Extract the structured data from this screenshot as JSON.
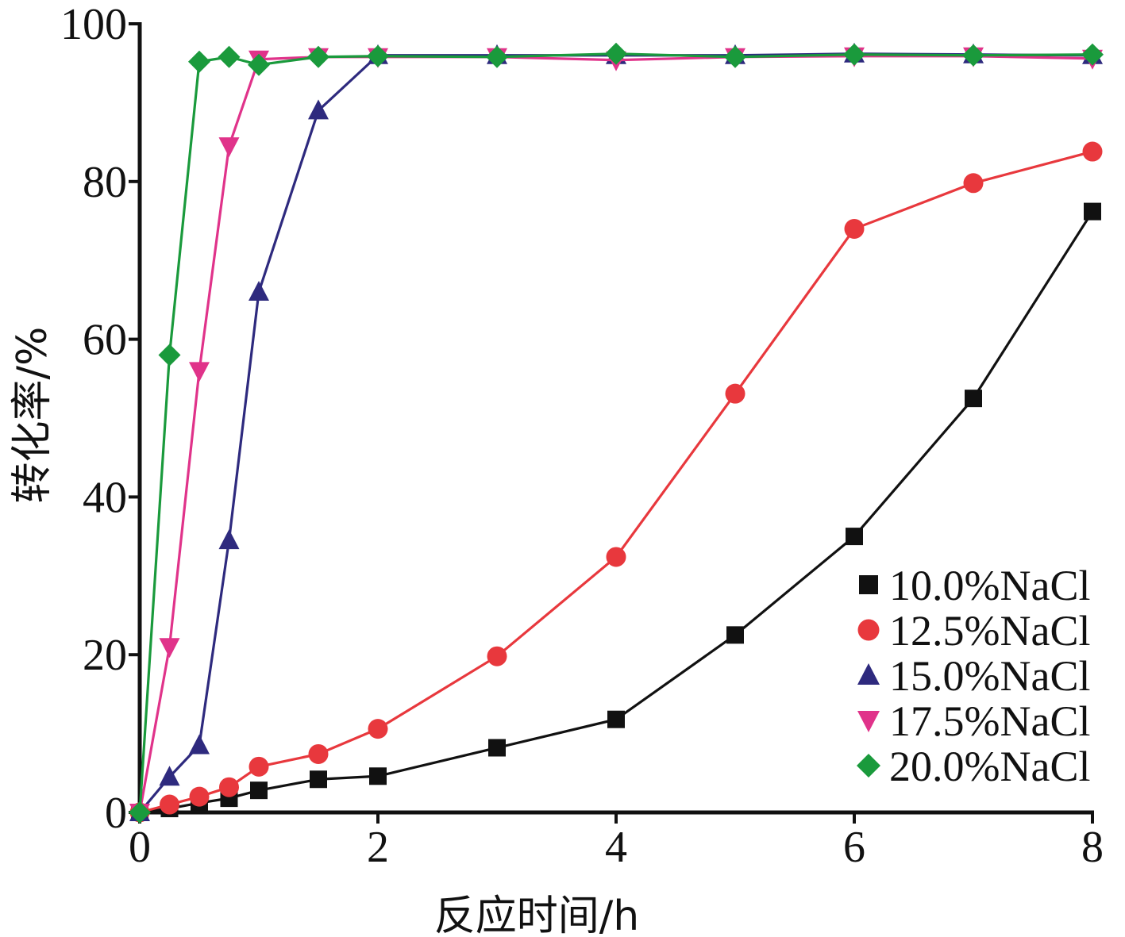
{
  "chart_data": {
    "type": "line",
    "xlabel": "反应时间/h",
    "ylabel": "转化率/%",
    "xlim": [
      0,
      8
    ],
    "ylim": [
      0,
      100
    ],
    "xticks": [
      0,
      2,
      4,
      6,
      8
    ],
    "yticks": [
      0,
      20,
      40,
      60,
      80,
      100
    ],
    "legend_position": "bottom-right",
    "grid": false,
    "series": [
      {
        "name": "10.0%NaCl",
        "color": "#111111",
        "marker": "square",
        "x": [
          0,
          0.25,
          0.5,
          0.75,
          1,
          1.5,
          2,
          3,
          4,
          5,
          6,
          7,
          8
        ],
        "y": [
          0,
          0.5,
          1.2,
          1.8,
          2.8,
          4.2,
          4.6,
          8.2,
          11.8,
          22.5,
          35.0,
          52.5,
          76.2
        ]
      },
      {
        "name": "12.5%NaCl",
        "color": "#e8383d",
        "marker": "circle",
        "x": [
          0,
          0.25,
          0.5,
          0.75,
          1,
          1.5,
          2,
          3,
          4,
          5,
          6,
          7,
          8
        ],
        "y": [
          0,
          1.0,
          2.0,
          3.2,
          5.8,
          7.4,
          10.6,
          19.8,
          32.4,
          53.1,
          74.0,
          79.8,
          83.8
        ]
      },
      {
        "name": "15.0%NaCl",
        "color": "#2e2a7e",
        "marker": "triangle-up",
        "x": [
          0,
          0.25,
          0.5,
          0.75,
          1,
          1.5,
          2,
          3,
          4,
          5,
          6,
          7,
          8
        ],
        "y": [
          0,
          4.5,
          8.5,
          34.5,
          66.0,
          89.0,
          96.0,
          96.0,
          96.0,
          96.0,
          96.2,
          96.1,
          96.0
        ]
      },
      {
        "name": "17.5%NaCl",
        "color": "#e0338a",
        "marker": "triangle-down",
        "x": [
          0,
          0.25,
          0.5,
          0.75,
          1,
          1.5,
          2,
          3,
          4,
          5,
          6,
          7,
          8
        ],
        "y": [
          0,
          21.0,
          56.0,
          84.5,
          95.5,
          95.8,
          95.8,
          95.8,
          95.4,
          95.8,
          95.9,
          95.9,
          95.6
        ]
      },
      {
        "name": "20.0%NaCl",
        "color": "#1a9a3c",
        "marker": "diamond",
        "x": [
          0,
          0.25,
          0.5,
          0.75,
          1,
          1.5,
          2,
          3,
          4,
          5,
          6,
          7,
          8
        ],
        "y": [
          0,
          58.0,
          95.2,
          95.8,
          94.8,
          95.8,
          95.9,
          95.8,
          96.2,
          95.8,
          96.1,
          96.0,
          96.1
        ]
      }
    ]
  }
}
